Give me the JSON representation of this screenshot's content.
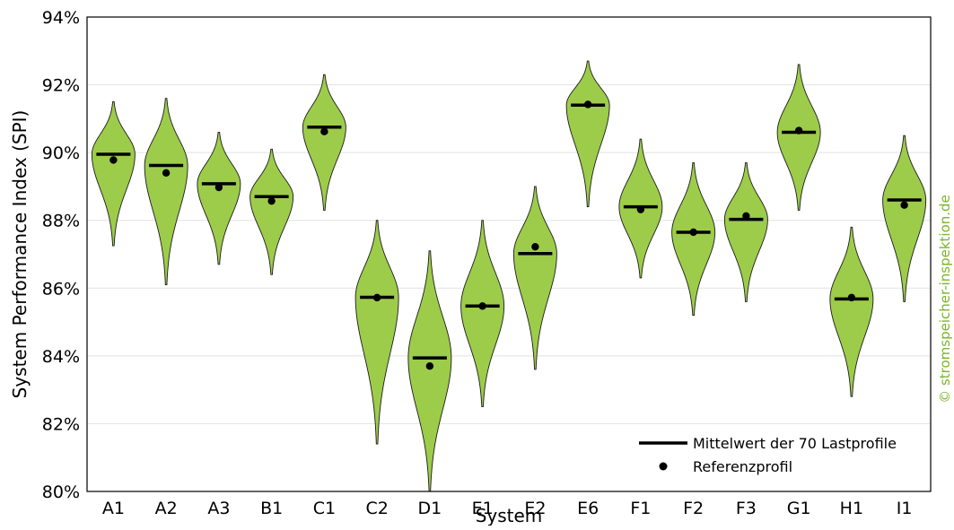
{
  "chart_data": {
    "type": "violin",
    "xlabel": "System",
    "ylabel": "System Performance Index (SPI)",
    "ylim": [
      80,
      94
    ],
    "yticks": [
      80,
      82,
      84,
      86,
      88,
      90,
      92,
      94
    ],
    "ytick_labels": [
      "80%",
      "82%",
      "84%",
      "86%",
      "88%",
      "90%",
      "92%",
      "94%"
    ],
    "grid": "horizontal",
    "categories": [
      "A1",
      "A2",
      "A3",
      "B1",
      "C1",
      "C2",
      "D1",
      "E1",
      "E2",
      "E6",
      "F1",
      "F2",
      "F3",
      "G1",
      "H1",
      "I1"
    ],
    "series": [
      {
        "name": "Mittelwert der 70 Lastprofile",
        "marker": "line",
        "values": [
          89.95,
          89.62,
          89.08,
          88.7,
          90.75,
          85.73,
          83.94,
          85.47,
          87.02,
          91.4,
          88.4,
          87.65,
          88.03,
          90.6,
          85.68,
          88.6
        ]
      },
      {
        "name": "Referenzprofil",
        "marker": "dot",
        "values": [
          89.78,
          89.4,
          88.97,
          88.57,
          90.62,
          85.72,
          83.7,
          85.47,
          87.22,
          91.42,
          88.32,
          87.65,
          88.13,
          90.65,
          85.72,
          88.45
        ]
      }
    ],
    "ranges": [
      [
        87.25,
        91.5
      ],
      [
        86.1,
        91.6
      ],
      [
        86.7,
        90.6
      ],
      [
        86.4,
        90.1
      ],
      [
        88.3,
        92.3
      ],
      [
        81.4,
        88.0
      ],
      [
        80.0,
        87.1
      ],
      [
        82.5,
        88.0
      ],
      [
        83.6,
        89.0
      ],
      [
        88.4,
        92.7
      ],
      [
        86.3,
        90.4
      ],
      [
        85.2,
        89.7
      ],
      [
        85.6,
        89.7
      ],
      [
        88.3,
        92.6
      ],
      [
        82.8,
        87.8
      ],
      [
        85.6,
        90.5
      ]
    ],
    "fill_color": "#9dcc4a",
    "legend_position": "lower-right",
    "watermark": "© stromspeicher-inspektion.de",
    "watermark_color": "#7ab527"
  }
}
